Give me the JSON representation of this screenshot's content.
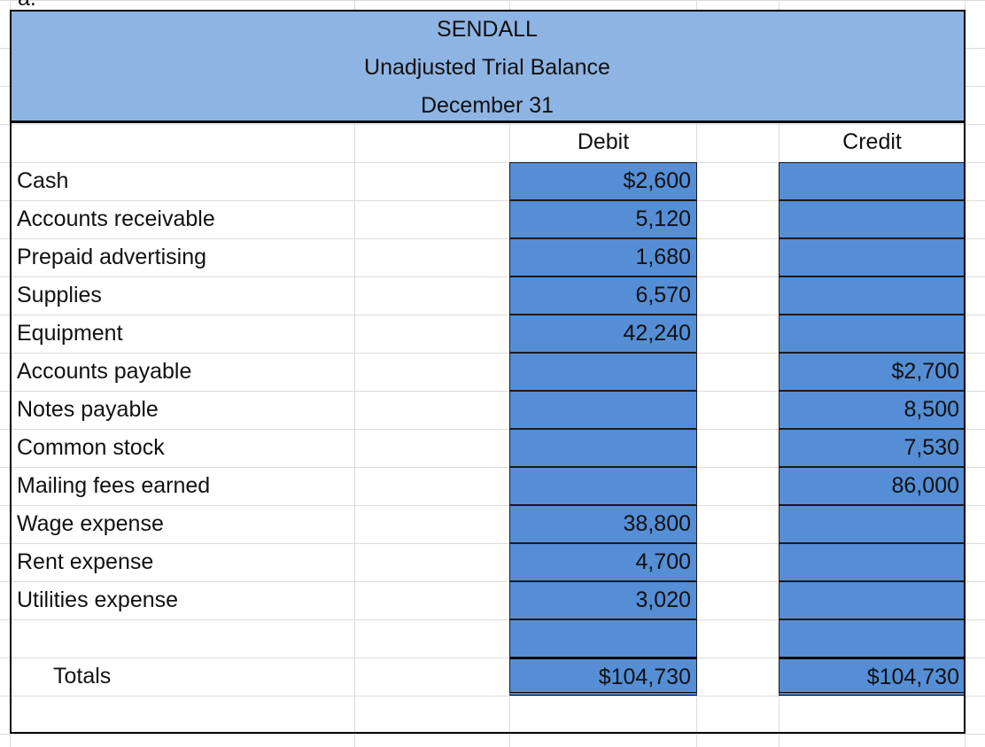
{
  "part_label": "a.",
  "header": {
    "company": "SENDALL",
    "statement": "Unadjusted Trial Balance",
    "date": "December 31"
  },
  "columns": {
    "debit": "Debit",
    "credit": "Credit"
  },
  "accounts": [
    {
      "name": "Cash",
      "debit": "$2,600",
      "credit": ""
    },
    {
      "name": "Accounts receivable",
      "debit": "5,120",
      "credit": ""
    },
    {
      "name": "Prepaid advertising",
      "debit": "1,680",
      "credit": ""
    },
    {
      "name": "Supplies",
      "debit": "6,570",
      "credit": ""
    },
    {
      "name": "Equipment",
      "debit": "42,240",
      "credit": ""
    },
    {
      "name": "Accounts payable",
      "debit": "",
      "credit": "$2,700"
    },
    {
      "name": "Notes payable",
      "debit": "",
      "credit": "8,500"
    },
    {
      "name": "Common stock",
      "debit": "",
      "credit": "7,530"
    },
    {
      "name": "Mailing  fees earned",
      "debit": "",
      "credit": "86,000"
    },
    {
      "name": "Wage expense",
      "debit": "38,800",
      "credit": ""
    },
    {
      "name": "Rent expense",
      "debit": "4,700",
      "credit": ""
    },
    {
      "name": "Utilities  expense",
      "debit": "3,020",
      "credit": ""
    },
    {
      "name": "",
      "debit": "",
      "credit": ""
    }
  ],
  "totals": {
    "label": "Totals",
    "debit": "$104,730",
    "credit": "$104,730"
  },
  "colors": {
    "header_fill": "#8EB4E3",
    "cell_fill": "#558ED5"
  }
}
